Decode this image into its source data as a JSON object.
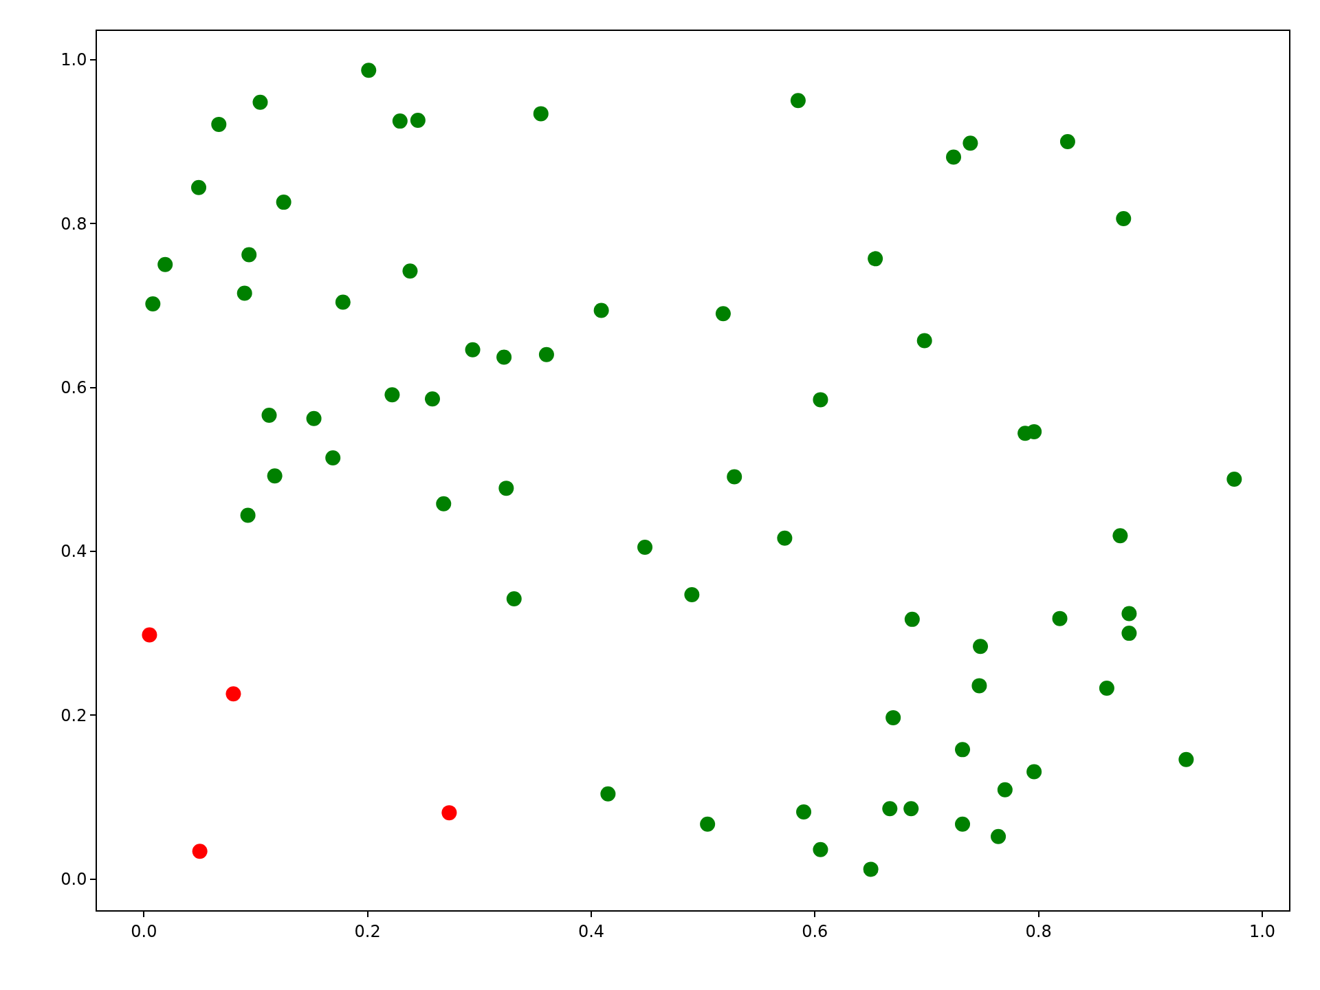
{
  "chart_data": {
    "type": "scatter",
    "marker": "circle",
    "grid": false,
    "xlim": [
      -0.042,
      1.024
    ],
    "ylim": [
      -0.038,
      1.035
    ],
    "xticks": [
      {
        "value": 0,
        "label": "0.0"
      },
      {
        "value": 0.2,
        "label": "0.2"
      },
      {
        "value": 0.4,
        "label": "0.4"
      },
      {
        "value": 0.6,
        "label": "0.6"
      },
      {
        "value": 0.8,
        "label": "0.8"
      },
      {
        "value": 1,
        "label": "1.0"
      }
    ],
    "yticks": [
      {
        "value": 0,
        "label": "0.0"
      },
      {
        "value": 0.2,
        "label": "0.2"
      },
      {
        "value": 0.4,
        "label": "0.4"
      },
      {
        "value": 0.6,
        "label": "0.6"
      },
      {
        "value": 0.8,
        "label": "0.8"
      },
      {
        "value": 1,
        "label": "1.0"
      }
    ],
    "series": [
      {
        "color": "#008000",
        "x": [
          0.201,
          0.104,
          0.067,
          0.229,
          0.245,
          0.355,
          0.585,
          0.049,
          0.125,
          0.019,
          0.094,
          0.008,
          0.09,
          0.238,
          0.178,
          0.409,
          0.518,
          0.294,
          0.322,
          0.36,
          0.222,
          0.258,
          0.112,
          0.152,
          0.169,
          0.117,
          0.093,
          0.268,
          0.324,
          0.331,
          0.448,
          0.49,
          0.528,
          0.573,
          0.605,
          0.654,
          0.698,
          0.724,
          0.739,
          0.826,
          0.876,
          0.788,
          0.796,
          0.975,
          0.873,
          0.881,
          0.881,
          0.819,
          0.687,
          0.748,
          0.747,
          0.861,
          0.67,
          0.732,
          0.796,
          0.932,
          0.77,
          0.667,
          0.686,
          0.59,
          0.415,
          0.504,
          0.732,
          0.764,
          0.605,
          0.65
        ],
        "values": [
          0.987,
          0.948,
          0.921,
          0.925,
          0.926,
          0.934,
          0.95,
          0.844,
          0.826,
          0.75,
          0.762,
          0.702,
          0.715,
          0.742,
          0.704,
          0.694,
          0.69,
          0.646,
          0.637,
          0.64,
          0.591,
          0.586,
          0.566,
          0.562,
          0.514,
          0.492,
          0.444,
          0.458,
          0.477,
          0.342,
          0.405,
          0.347,
          0.491,
          0.416,
          0.585,
          0.757,
          0.657,
          0.881,
          0.898,
          0.9,
          0.806,
          0.544,
          0.546,
          0.488,
          0.419,
          0.324,
          0.3,
          0.318,
          0.317,
          0.284,
          0.236,
          0.233,
          0.197,
          0.158,
          0.131,
          0.146,
          0.109,
          0.086,
          0.086,
          0.082,
          0.104,
          0.067,
          0.067,
          0.052,
          0.036,
          0.012
        ]
      },
      {
        "color": "#ff0000",
        "x": [
          0.005,
          0.08,
          0.05,
          0.273
        ],
        "values": [
          0.298,
          0.226,
          0.034,
          0.081
        ]
      }
    ]
  }
}
